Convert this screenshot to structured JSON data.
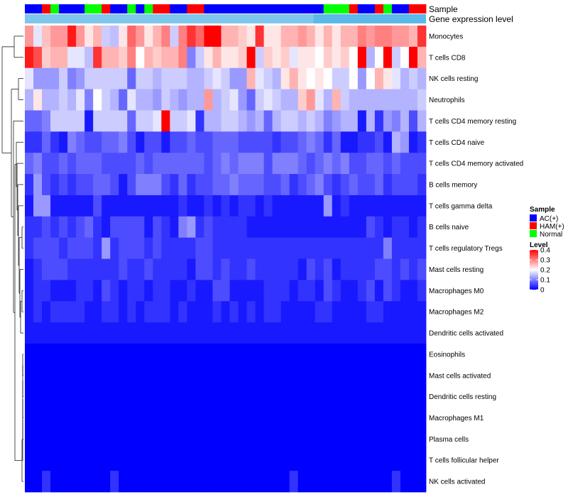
{
  "chart_data": {
    "type": "heatmap",
    "annotation_labels": {
      "sample": "Sample",
      "gene_expression": "Gene expression level"
    },
    "colors": {
      "low": "#0000ff",
      "mid": "#ffffff",
      "high": "#ff0000",
      "ann_light": "#7ec6ec",
      "ann_dark": "#5bb8e8",
      "dendro": "#000000"
    },
    "sample_groups": [
      {
        "name": "AC(+)",
        "color": "#0000ff"
      },
      {
        "name": "HAM(+)",
        "color": "#ff0000"
      },
      {
        "name": "Normal",
        "color": "#00ff00"
      }
    ],
    "sample_annotation": [
      0,
      0,
      1,
      2,
      0,
      0,
      0,
      2,
      2,
      1,
      0,
      0,
      2,
      0,
      2,
      1,
      1,
      0,
      0,
      1,
      1,
      0,
      0,
      0,
      0,
      0,
      0,
      0,
      0,
      0,
      0,
      0,
      0,
      0,
      0,
      2,
      2,
      2,
      1,
      0,
      0,
      1,
      2,
      0,
      0,
      1,
      1
    ],
    "level_legend": {
      "title": "Level",
      "ticks": [
        "0.4",
        "0.3",
        "0.2",
        "0.1",
        "0"
      ],
      "tick_values": [
        0.4,
        0.3,
        0.2,
        0.1,
        0.0
      ],
      "min": 0,
      "max": 0.4
    },
    "sample_legend_title": "Sample",
    "rows": [
      {
        "label": "Monocytes",
        "values": [
          0.28,
          0.18,
          0.25,
          0.28,
          0.28,
          0.38,
          0.28,
          0.22,
          0.26,
          0.16,
          0.15,
          0.22,
          0.32,
          0.28,
          0.22,
          0.26,
          0.3,
          0.16,
          0.3,
          0.36,
          0.32,
          0.4,
          0.4,
          0.26,
          0.26,
          0.24,
          0.22,
          0.36,
          0.22,
          0.22,
          0.26,
          0.26,
          0.28,
          0.26,
          0.22,
          0.26,
          0.22,
          0.26,
          0.26,
          0.3,
          0.28,
          0.3,
          0.3,
          0.28,
          0.28,
          0.26,
          0.36
        ]
      },
      {
        "label": "T cells CD8",
        "values": [
          0.38,
          0.34,
          0.24,
          0.26,
          0.26,
          0.18,
          0.18,
          0.15,
          0.36,
          0.26,
          0.26,
          0.24,
          0.3,
          0.2,
          0.26,
          0.24,
          0.26,
          0.26,
          0.3,
          0.1,
          0.16,
          0.22,
          0.26,
          0.22,
          0.22,
          0.24,
          0.4,
          0.16,
          0.24,
          0.22,
          0.24,
          0.18,
          0.22,
          0.22,
          0.2,
          0.24,
          0.22,
          0.24,
          0.2,
          0.4,
          0.14,
          0.2,
          0.4,
          0.16,
          0.2,
          0.4,
          0.26
        ]
      },
      {
        "label": "NK cells resting",
        "values": [
          0.18,
          0.12,
          0.12,
          0.12,
          0.16,
          0.1,
          0.12,
          0.16,
          0.16,
          0.16,
          0.16,
          0.16,
          0.08,
          0.16,
          0.16,
          0.14,
          0.16,
          0.16,
          0.16,
          0.14,
          0.14,
          0.16,
          0.18,
          0.16,
          0.12,
          0.12,
          0.26,
          0.18,
          0.16,
          0.14,
          0.22,
          0.26,
          0.22,
          0.2,
          0.22,
          0.2,
          0.16,
          0.16,
          0.2,
          0.12,
          0.2,
          0.26,
          0.22,
          0.18,
          0.14,
          0.16,
          0.14
        ]
      },
      {
        "label": "Neutrophils",
        "values": [
          0.14,
          0.22,
          0.14,
          0.14,
          0.16,
          0.14,
          0.18,
          0.1,
          0.2,
          0.16,
          0.14,
          0.08,
          0.18,
          0.14,
          0.14,
          0.12,
          0.16,
          0.14,
          0.12,
          0.14,
          0.14,
          0.28,
          0.14,
          0.16,
          0.18,
          0.12,
          0.08,
          0.16,
          0.18,
          0.16,
          0.14,
          0.14,
          0.24,
          0.28,
          0.18,
          0.14,
          0.26,
          0.16,
          0.14,
          0.14,
          0.14,
          0.14,
          0.14,
          0.14,
          0.14,
          0.14,
          0.16
        ]
      },
      {
        "label": "T cells CD4 memory resting",
        "values": [
          0.08,
          0.08,
          0.1,
          0.16,
          0.16,
          0.16,
          0.16,
          0.02,
          0.16,
          0.16,
          0.16,
          0.16,
          0.08,
          0.16,
          0.16,
          0.18,
          0.4,
          0.16,
          0.16,
          0.18,
          0.04,
          0.14,
          0.14,
          0.16,
          0.16,
          0.14,
          0.12,
          0.14,
          0.08,
          0.14,
          0.16,
          0.16,
          0.14,
          0.16,
          0.14,
          0.1,
          0.12,
          0.14,
          0.14,
          0.02,
          0.14,
          0.04,
          0.12,
          0.1,
          0.14,
          0.06,
          0.14
        ]
      },
      {
        "label": "T cells CD4 naive",
        "values": [
          0.04,
          0.04,
          0.08,
          0.04,
          0.02,
          0.1,
          0.08,
          0.06,
          0.06,
          0.08,
          0.08,
          0.1,
          0.06,
          0.02,
          0.06,
          0.06,
          0.02,
          0.06,
          0.06,
          0.08,
          0.06,
          0.06,
          0.08,
          0.08,
          0.08,
          0.06,
          0.06,
          0.06,
          0.06,
          0.04,
          0.06,
          0.06,
          0.08,
          0.1,
          0.08,
          0.04,
          0.08,
          0.02,
          0.02,
          0.04,
          0.04,
          0.06,
          0.02,
          0.14,
          0.12,
          0.02,
          0.04
        ]
      },
      {
        "label": "T cells CD4 memory activated",
        "values": [
          0.08,
          0.1,
          0.06,
          0.06,
          0.08,
          0.06,
          0.08,
          0.08,
          0.08,
          0.06,
          0.06,
          0.06,
          0.06,
          0.08,
          0.06,
          0.08,
          0.08,
          0.08,
          0.08,
          0.08,
          0.08,
          0.06,
          0.08,
          0.1,
          0.08,
          0.1,
          0.1,
          0.1,
          0.06,
          0.1,
          0.1,
          0.1,
          0.08,
          0.06,
          0.08,
          0.1,
          0.08,
          0.1,
          0.06,
          0.06,
          0.08,
          0.08,
          0.06,
          0.08,
          0.06,
          0.06,
          0.06
        ]
      },
      {
        "label": "B cells memory",
        "values": [
          0.04,
          0.12,
          0.06,
          0.04,
          0.06,
          0.04,
          0.06,
          0.06,
          0.08,
          0.08,
          0.06,
          0.02,
          0.06,
          0.1,
          0.1,
          0.1,
          0.06,
          0.04,
          0.08,
          0.04,
          0.06,
          0.06,
          0.08,
          0.08,
          0.1,
          0.08,
          0.08,
          0.08,
          0.06,
          0.06,
          0.08,
          0.04,
          0.06,
          0.08,
          0.1,
          0.06,
          0.04,
          0.06,
          0.08,
          0.06,
          0.06,
          0.08,
          0.04,
          0.06,
          0.06,
          0.06,
          0.04
        ]
      },
      {
        "label": "T cells gamma delta",
        "values": [
          0.02,
          0.12,
          0.12,
          0.02,
          0.02,
          0.02,
          0.02,
          0.02,
          0.06,
          0.02,
          0.02,
          0.02,
          0.02,
          0.02,
          0.02,
          0.02,
          0.02,
          0.02,
          0.04,
          0.02,
          0.02,
          0.04,
          0.02,
          0.04,
          0.02,
          0.04,
          0.04,
          0.02,
          0.04,
          0.02,
          0.02,
          0.02,
          0.02,
          0.02,
          0.02,
          0.12,
          0.02,
          0.04,
          0.02,
          0.02,
          0.02,
          0.02,
          0.02,
          0.02,
          0.02,
          0.02,
          0.02
        ]
      },
      {
        "label": "B cells naive",
        "values": [
          0.04,
          0.04,
          0.06,
          0.04,
          0.06,
          0.04,
          0.06,
          0.08,
          0.04,
          0.02,
          0.06,
          0.06,
          0.06,
          0.06,
          0.02,
          0.06,
          0.04,
          0.02,
          0.1,
          0.12,
          0.04,
          0.06,
          0.04,
          0.04,
          0.04,
          0.04,
          0.02,
          0.02,
          0.02,
          0.02,
          0.02,
          0.02,
          0.02,
          0.02,
          0.02,
          0.02,
          0.02,
          0.02,
          0.02,
          0.02,
          0.06,
          0.04,
          0.02,
          0.04,
          0.04,
          0.02,
          0.04
        ]
      },
      {
        "label": "T cells regulatory  Tregs",
        "values": [
          0.04,
          0.06,
          0.06,
          0.06,
          0.04,
          0.06,
          0.06,
          0.06,
          0.04,
          0.12,
          0.04,
          0.06,
          0.06,
          0.06,
          0.04,
          0.06,
          0.04,
          0.04,
          0.04,
          0.04,
          0.06,
          0.06,
          0.04,
          0.04,
          0.04,
          0.04,
          0.04,
          0.04,
          0.04,
          0.04,
          0.04,
          0.04,
          0.04,
          0.04,
          0.04,
          0.04,
          0.04,
          0.04,
          0.04,
          0.04,
          0.04,
          0.04,
          0.1,
          0.04,
          0.04,
          0.04,
          0.04
        ]
      },
      {
        "label": "Mast cells resting",
        "values": [
          0.02,
          0.04,
          0.06,
          0.06,
          0.06,
          0.04,
          0.04,
          0.04,
          0.04,
          0.04,
          0.04,
          0.06,
          0.04,
          0.04,
          0.06,
          0.04,
          0.04,
          0.04,
          0.04,
          0.02,
          0.06,
          0.06,
          0.04,
          0.06,
          0.04,
          0.04,
          0.06,
          0.04,
          0.04,
          0.04,
          0.04,
          0.04,
          0.02,
          0.06,
          0.04,
          0.06,
          0.02,
          0.04,
          0.04,
          0.04,
          0.04,
          0.06,
          0.06,
          0.04,
          0.06,
          0.04,
          0.06
        ]
      },
      {
        "label": "Macrophages M0",
        "values": [
          0.02,
          0.04,
          0.04,
          0.02,
          0.02,
          0.02,
          0.04,
          0.04,
          0.02,
          0.06,
          0.04,
          0.02,
          0.04,
          0.04,
          0.02,
          0.04,
          0.04,
          0.02,
          0.02,
          0.04,
          0.02,
          0.02,
          0.06,
          0.06,
          0.02,
          0.02,
          0.02,
          0.02,
          0.04,
          0.04,
          0.04,
          0.02,
          0.04,
          0.04,
          0.02,
          0.06,
          0.04,
          0.02,
          0.02,
          0.04,
          0.06,
          0.02,
          0.06,
          0.04,
          0.02,
          0.02,
          0.04
        ]
      },
      {
        "label": "Macrophages M2",
        "values": [
          0.02,
          0.04,
          0.02,
          0.04,
          0.04,
          0.04,
          0.04,
          0.02,
          0.02,
          0.04,
          0.04,
          0.02,
          0.04,
          0.02,
          0.04,
          0.04,
          0.04,
          0.02,
          0.04,
          0.02,
          0.02,
          0.02,
          0.04,
          0.02,
          0.04,
          0.02,
          0.04,
          0.02,
          0.04,
          0.04,
          0.02,
          0.02,
          0.02,
          0.02,
          0.04,
          0.04,
          0.02,
          0.02,
          0.02,
          0.02,
          0.04,
          0.04,
          0.02,
          0.02,
          0.02,
          0.02,
          0.02
        ]
      },
      {
        "label": "Dendritic cells activated",
        "values": [
          0.02,
          0.02,
          0.02,
          0.02,
          0.02,
          0.02,
          0.02,
          0.02,
          0.02,
          0.02,
          0.02,
          0.02,
          0.02,
          0.02,
          0.02,
          0.02,
          0.02,
          0.02,
          0.02,
          0.02,
          0.02,
          0.02,
          0.02,
          0.02,
          0.02,
          0.02,
          0.02,
          0.02,
          0.02,
          0.02,
          0.02,
          0.02,
          0.02,
          0.02,
          0.02,
          0.02,
          0.02,
          0.02,
          0.02,
          0.02,
          0.02,
          0.02,
          0.02,
          0.02,
          0.02,
          0.02,
          0.02
        ]
      },
      {
        "label": "Eosinophils",
        "values": [
          0,
          0,
          0,
          0,
          0,
          0,
          0,
          0,
          0,
          0,
          0,
          0,
          0,
          0,
          0,
          0,
          0,
          0,
          0,
          0,
          0,
          0,
          0,
          0,
          0,
          0,
          0,
          0,
          0,
          0,
          0,
          0,
          0,
          0,
          0,
          0,
          0,
          0,
          0,
          0,
          0,
          0,
          0,
          0,
          0,
          0,
          0
        ]
      },
      {
        "label": "Mast cells activated",
        "values": [
          0,
          0,
          0,
          0,
          0,
          0,
          0,
          0,
          0,
          0,
          0,
          0,
          0,
          0,
          0,
          0,
          0,
          0,
          0,
          0,
          0,
          0,
          0,
          0,
          0,
          0,
          0,
          0,
          0,
          0,
          0,
          0,
          0,
          0,
          0,
          0,
          0,
          0,
          0,
          0,
          0,
          0,
          0,
          0,
          0,
          0,
          0
        ]
      },
      {
        "label": "Dendritic cells resting",
        "values": [
          0,
          0,
          0,
          0,
          0,
          0,
          0,
          0,
          0,
          0,
          0,
          0,
          0,
          0,
          0,
          0,
          0,
          0,
          0,
          0,
          0,
          0,
          0,
          0,
          0,
          0,
          0,
          0,
          0,
          0,
          0,
          0,
          0,
          0,
          0,
          0,
          0,
          0,
          0,
          0,
          0,
          0,
          0,
          0,
          0,
          0,
          0
        ]
      },
      {
        "label": "Macrophages M1",
        "values": [
          0,
          0,
          0,
          0,
          0,
          0,
          0,
          0,
          0,
          0,
          0,
          0,
          0,
          0,
          0,
          0,
          0,
          0,
          0,
          0,
          0,
          0,
          0,
          0,
          0,
          0,
          0,
          0,
          0,
          0,
          0,
          0,
          0,
          0,
          0,
          0,
          0,
          0,
          0,
          0,
          0,
          0,
          0,
          0,
          0,
          0,
          0
        ]
      },
      {
        "label": "Plasma cells",
        "values": [
          0,
          0,
          0,
          0,
          0,
          0,
          0,
          0,
          0,
          0,
          0,
          0,
          0,
          0,
          0,
          0,
          0,
          0,
          0,
          0,
          0,
          0,
          0,
          0,
          0,
          0,
          0,
          0,
          0,
          0,
          0,
          0,
          0,
          0,
          0,
          0,
          0,
          0,
          0,
          0,
          0,
          0,
          0,
          0,
          0,
          0,
          0
        ]
      },
      {
        "label": "T cells follicular helper",
        "values": [
          0,
          0,
          0,
          0,
          0,
          0,
          0,
          0,
          0,
          0,
          0,
          0,
          0,
          0,
          0,
          0,
          0,
          0,
          0,
          0,
          0,
          0,
          0,
          0,
          0,
          0,
          0,
          0,
          0,
          0,
          0,
          0,
          0,
          0,
          0,
          0,
          0,
          0,
          0,
          0,
          0,
          0,
          0,
          0,
          0,
          0,
          0
        ]
      },
      {
        "label": "NK cells activated",
        "values": [
          0,
          0,
          0.04,
          0,
          0,
          0,
          0,
          0,
          0,
          0,
          0.04,
          0,
          0,
          0,
          0,
          0,
          0,
          0,
          0,
          0,
          0,
          0,
          0,
          0,
          0,
          0,
          0,
          0,
          0,
          0,
          0,
          0.04,
          0,
          0,
          0,
          0,
          0,
          0,
          0,
          0,
          0,
          0,
          0,
          0.04,
          0,
          0,
          0
        ]
      }
    ]
  }
}
